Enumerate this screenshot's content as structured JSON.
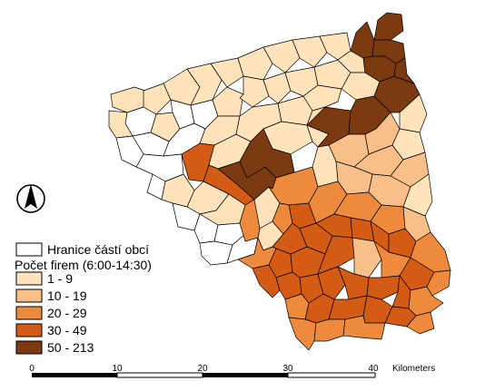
{
  "legend": {
    "boundary_label": "Hranice částí obcí",
    "title": "Počet firem (6:00-14:30)",
    "classes": [
      {
        "label": "1 - 9",
        "color": "#fde2ba"
      },
      {
        "label": "10 - 19",
        "color": "#f8bf89"
      },
      {
        "label": "20 - 29",
        "color": "#ee8a3c"
      },
      {
        "label": "30 - 49",
        "color": "#d35b14"
      },
      {
        "label": "50 - 213",
        "color": "#7c3a10"
      }
    ]
  },
  "scale": {
    "ticks": [
      "0",
      "10",
      "20",
      "30",
      "40"
    ],
    "unit": "Kilometers"
  },
  "north_arrow": {
    "icon": "north-arrow-icon"
  },
  "colors": {
    "no_data": "#ffffff",
    "outline": "#000000"
  }
}
